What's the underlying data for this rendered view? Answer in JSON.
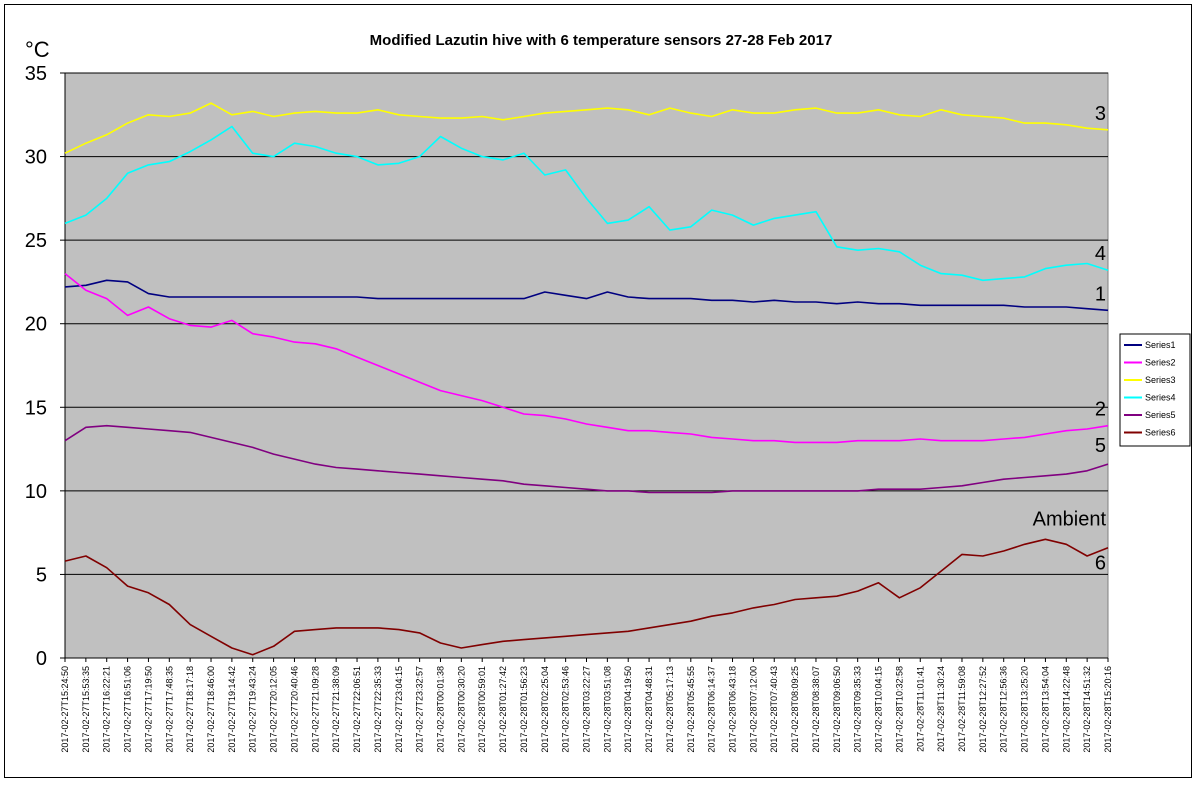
{
  "chart_data": {
    "type": "line",
    "title": "Modified Lazutin hive with 6 temperature sensors 27-28 Feb 2017",
    "ylabel": "°C",
    "xlabel": "",
    "ylim": [
      0,
      35
    ],
    "yticks": [
      0,
      5,
      10,
      15,
      20,
      25,
      30,
      35
    ],
    "grid": true,
    "legend_position": "right",
    "background": "#c0c0c0",
    "x": [
      "2017-02-27T15:24:50",
      "2017-02-27T15:53:35",
      "2017-02-27T16:22:21",
      "2017-02-27T16:51:06",
      "2017-02-27T17:19:50",
      "2017-02-27T17:48:35",
      "2017-02-27T18:17:18",
      "2017-02-27T18:46:00",
      "2017-02-27T19:14:42",
      "2017-02-27T19:43:24",
      "2017-02-27T20:12:05",
      "2017-02-27T20:40:46",
      "2017-02-27T21:09:28",
      "2017-02-27T21:38:09",
      "2017-02-27T22:06:51",
      "2017-02-27T22:35:33",
      "2017-02-27T23:04:15",
      "2017-02-27T23:32:57",
      "2017-02-28T00:01:38",
      "2017-02-28T00:30:20",
      "2017-02-28T00:59:01",
      "2017-02-28T01:27:42",
      "2017-02-28T01:56:23",
      "2017-02-28T02:25:04",
      "2017-02-28T02:53:46",
      "2017-02-28T03:22:27",
      "2017-02-28T03:51:08",
      "2017-02-28T04:19:50",
      "2017-02-28T04:48:31",
      "2017-02-28T05:17:13",
      "2017-02-28T05:45:55",
      "2017-02-28T06:14:37",
      "2017-02-28T06:43:18",
      "2017-02-28T07:12:00",
      "2017-02-28T07:40:43",
      "2017-02-28T08:09:25",
      "2017-02-28T08:38:07",
      "2017-02-28T09:06:50",
      "2017-02-28T09:35:33",
      "2017-02-28T10:04:15",
      "2017-02-28T10:32:58",
      "2017-02-28T11:01:41",
      "2017-02-28T11:30:24",
      "2017-02-28T11:59:08",
      "2017-02-28T12:27:52",
      "2017-02-28T12:56:36",
      "2017-02-28T13:25:20",
      "2017-02-28T13:54:04",
      "2017-02-28T14:22:48",
      "2017-02-28T14:51:32",
      "2017-02-28T15:20:16"
    ],
    "series": [
      {
        "name": "Series1",
        "color": "#000080",
        "label": "1",
        "values": [
          22.2,
          22.3,
          22.6,
          22.5,
          21.8,
          21.6,
          21.6,
          21.6,
          21.6,
          21.6,
          21.6,
          21.6,
          21.6,
          21.6,
          21.6,
          21.5,
          21.5,
          21.5,
          21.5,
          21.5,
          21.5,
          21.5,
          21.5,
          21.9,
          21.7,
          21.5,
          21.9,
          21.6,
          21.5,
          21.5,
          21.5,
          21.4,
          21.4,
          21.3,
          21.4,
          21.3,
          21.3,
          21.2,
          21.3,
          21.2,
          21.2,
          21.1,
          21.1,
          21.1,
          21.1,
          21.1,
          21.0,
          21.0,
          21.0,
          20.9,
          20.8
        ]
      },
      {
        "name": "Series2",
        "color": "#ff00ff",
        "label": "2",
        "values": [
          23.0,
          22.0,
          21.5,
          20.5,
          21.0,
          20.3,
          19.9,
          19.8,
          20.2,
          19.4,
          19.2,
          18.9,
          18.8,
          18.5,
          18.0,
          17.5,
          17.0,
          16.5,
          16.0,
          15.7,
          15.4,
          15.0,
          14.6,
          14.5,
          14.3,
          14.0,
          13.8,
          13.6,
          13.6,
          13.5,
          13.4,
          13.2,
          13.1,
          13.0,
          13.0,
          12.9,
          12.9,
          12.9,
          13.0,
          13.0,
          13.0,
          13.1,
          13.0,
          13.0,
          13.0,
          13.1,
          13.2,
          13.4,
          13.6,
          13.7,
          13.9
        ]
      },
      {
        "name": "Series3",
        "color": "#ffff00",
        "label": "3",
        "values": [
          30.2,
          30.8,
          31.3,
          32.0,
          32.5,
          32.4,
          32.6,
          33.2,
          32.5,
          32.7,
          32.4,
          32.6,
          32.7,
          32.6,
          32.6,
          32.8,
          32.5,
          32.4,
          32.3,
          32.3,
          32.4,
          32.2,
          32.4,
          32.6,
          32.7,
          32.8,
          32.9,
          32.8,
          32.5,
          32.9,
          32.6,
          32.4,
          32.8,
          32.6,
          32.6,
          32.8,
          32.9,
          32.6,
          32.6,
          32.8,
          32.5,
          32.4,
          32.8,
          32.5,
          32.4,
          32.3,
          32.0,
          32.0,
          31.9,
          31.7,
          31.6
        ]
      },
      {
        "name": "Series4",
        "color": "#00ffff",
        "label": "4",
        "values": [
          26.0,
          26.5,
          27.5,
          29.0,
          29.5,
          29.7,
          30.3,
          31.0,
          31.8,
          30.2,
          30.0,
          30.8,
          30.6,
          30.2,
          30.0,
          29.5,
          29.6,
          30.0,
          31.2,
          30.5,
          30.0,
          29.8,
          30.2,
          28.9,
          29.2,
          27.5,
          26.0,
          26.2,
          27.0,
          25.6,
          25.8,
          26.8,
          26.5,
          25.9,
          26.3,
          26.5,
          26.7,
          24.6,
          24.4,
          24.5,
          24.3,
          23.5,
          23.0,
          22.9,
          22.6,
          22.7,
          22.8,
          23.3,
          23.5,
          23.6,
          23.2
        ]
      },
      {
        "name": "Series5",
        "color": "#800080",
        "label": "5",
        "values": [
          13.0,
          13.8,
          13.9,
          13.8,
          13.7,
          13.6,
          13.5,
          13.2,
          12.9,
          12.6,
          12.2,
          11.9,
          11.6,
          11.4,
          11.3,
          11.2,
          11.1,
          11.0,
          10.9,
          10.8,
          10.7,
          10.6,
          10.4,
          10.3,
          10.2,
          10.1,
          10.0,
          10.0,
          9.9,
          9.9,
          9.9,
          9.9,
          10.0,
          10.0,
          10.0,
          10.0,
          10.0,
          10.0,
          10.0,
          10.1,
          10.1,
          10.1,
          10.2,
          10.3,
          10.5,
          10.7,
          10.8,
          10.9,
          11.0,
          11.2,
          11.6
        ]
      },
      {
        "name": "Series6",
        "color": "#800000",
        "label": "6",
        "values": [
          5.8,
          6.1,
          5.4,
          4.3,
          3.9,
          3.2,
          2.0,
          1.3,
          0.6,
          0.2,
          0.7,
          1.6,
          1.7,
          1.8,
          1.8,
          1.8,
          1.7,
          1.5,
          0.9,
          0.6,
          0.8,
          1.0,
          1.1,
          1.2,
          1.3,
          1.4,
          1.5,
          1.6,
          1.8,
          2.0,
          2.2,
          2.5,
          2.7,
          3.0,
          3.2,
          3.5,
          3.6,
          3.7,
          4.0,
          4.5,
          3.6,
          4.2,
          5.2,
          6.2,
          6.1,
          6.4,
          6.8,
          7.1,
          6.8,
          6.1,
          6.6
        ]
      }
    ],
    "annotations": [
      {
        "text": "3",
        "series": "Series3"
      },
      {
        "text": "4",
        "series": "Series4"
      },
      {
        "text": "1",
        "series": "Series1"
      },
      {
        "text": "2",
        "series": "Series2"
      },
      {
        "text": "5",
        "series": "Series5"
      },
      {
        "text": "Ambient",
        "series": "Series6"
      },
      {
        "text": "6",
        "series": "Series6"
      }
    ]
  }
}
